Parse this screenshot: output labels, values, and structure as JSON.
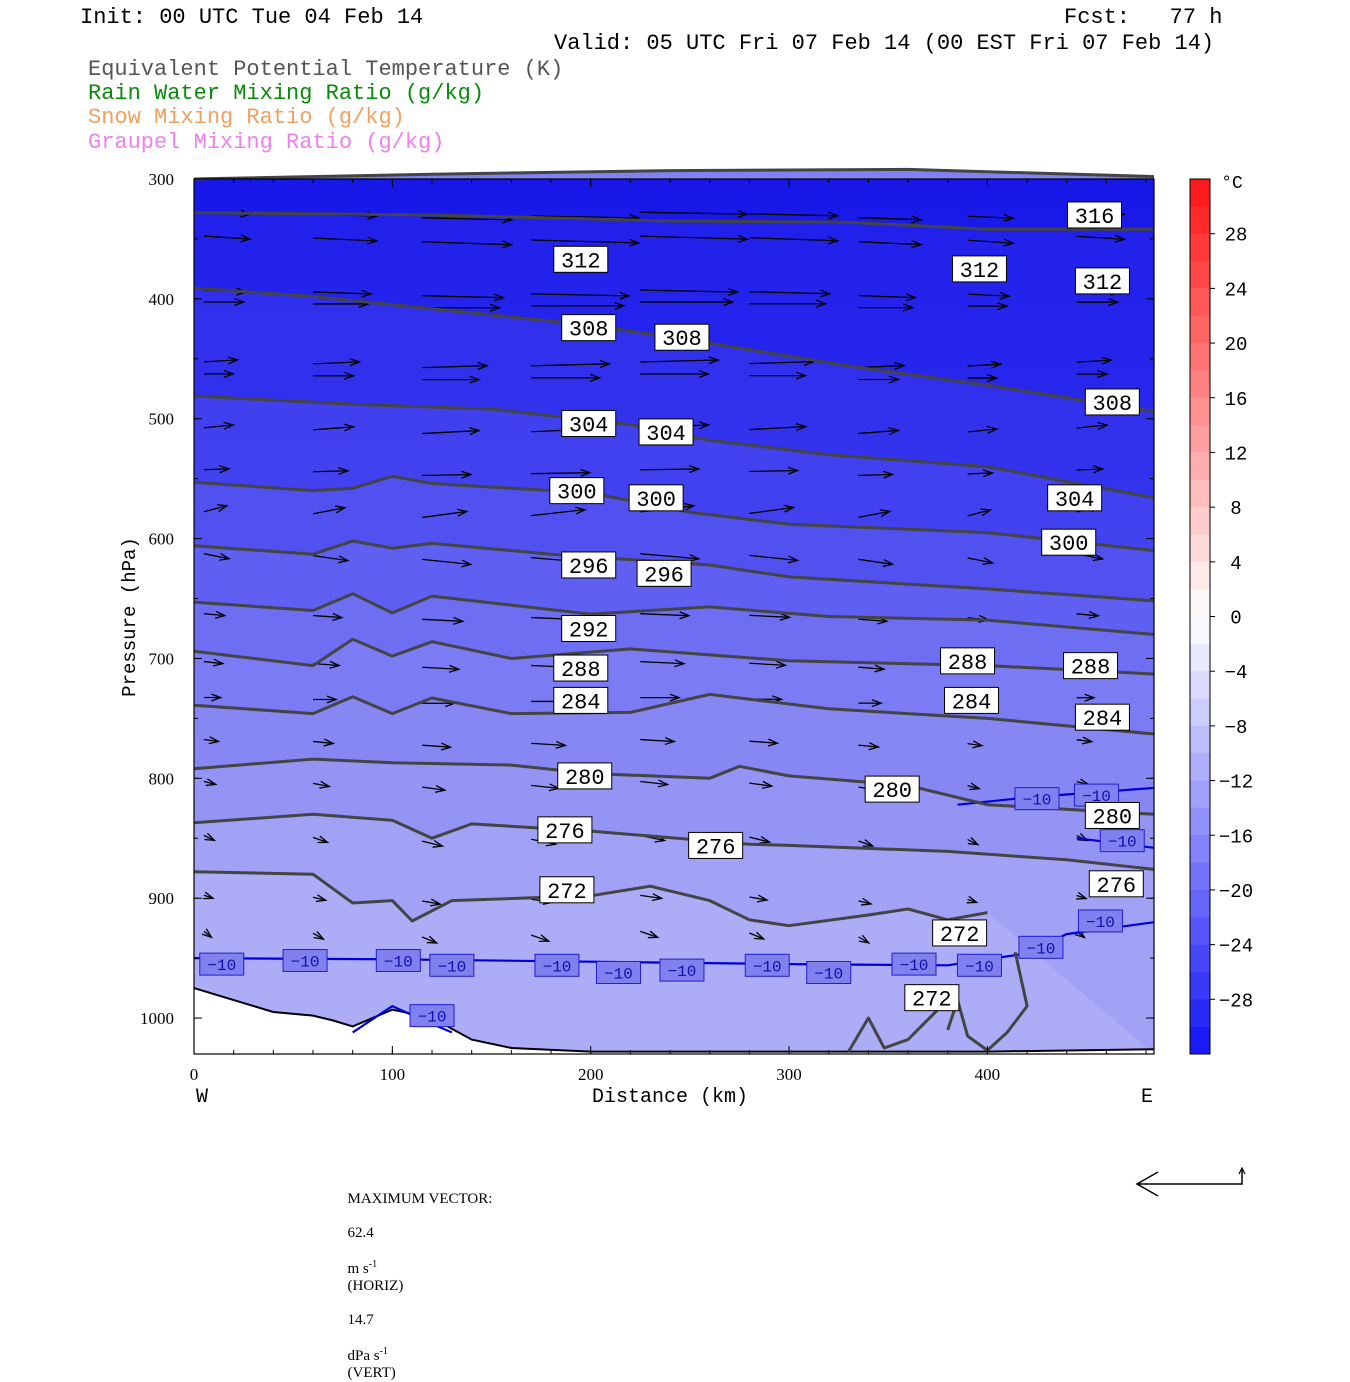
{
  "header": {
    "init": "Init: 00 UTC Tue 04 Feb 14",
    "fcst": "Fcst:   77 h",
    "valid": "Valid: 05 UTC Fri 07 Feb 14 (00 EST Fri 07 Feb 14)"
  },
  "legend": [
    {
      "label": "Equivalent Potential Temperature (K)",
      "color": "#555555"
    },
    {
      "label": "Rain Water Mixing Ratio (g/kg)",
      "color": "#0a8a0a"
    },
    {
      "label": "Snow Mixing Ratio (g/kg)",
      "color": "#f0a060"
    },
    {
      "label": "Graupel Mixing Ratio (g/kg)",
      "color": "#f080f0"
    }
  ],
  "chart_data": {
    "type": "contour",
    "ylabel": "Pressure (hPa)",
    "xlabel": "Distance (km)",
    "x_end_labels": {
      "left": "W",
      "right": "E"
    },
    "x_ticks": [
      0,
      100,
      200,
      300,
      400
    ],
    "y_ticks": [
      300,
      400,
      500,
      600,
      700,
      800,
      900,
      1000
    ],
    "xlim": [
      0,
      484
    ],
    "ylim": [
      300,
      1030
    ],
    "colorbar": {
      "unit": "°C",
      "ticks": [
        28,
        24,
        20,
        16,
        12,
        8,
        4,
        0,
        -4,
        -8,
        -12,
        -16,
        -20,
        -24,
        -28
      ],
      "range": [
        -32,
        32
      ]
    },
    "theta_e_contours": [
      {
        "value": 316,
        "points": [
          [
            0,
            300
          ],
          [
            120,
            296
          ],
          [
            240,
            293
          ],
          [
            360,
            292
          ],
          [
            484,
            298
          ]
        ],
        "labels": [
          [
            454,
            330
          ]
        ]
      },
      {
        "value": 312,
        "points": [
          [
            0,
            328
          ],
          [
            120,
            330
          ],
          [
            240,
            335
          ],
          [
            330,
            336
          ],
          [
            400,
            342
          ],
          [
            484,
            342
          ]
        ],
        "labels": [
          [
            195,
            367
          ],
          [
            396,
            375
          ],
          [
            458,
            385
          ]
        ]
      },
      {
        "value": 308,
        "points": [
          [
            0,
            391
          ],
          [
            60,
            398
          ],
          [
            130,
            410
          ],
          [
            200,
            422
          ],
          [
            260,
            437
          ],
          [
            330,
            456
          ],
          [
            400,
            472
          ],
          [
            484,
            494
          ]
        ],
        "labels": [
          [
            199,
            424
          ],
          [
            246,
            432
          ],
          [
            463,
            486
          ]
        ]
      },
      {
        "value": 304,
        "points": [
          [
            0,
            481
          ],
          [
            80,
            488
          ],
          [
            150,
            492
          ],
          [
            220,
            505
          ],
          [
            260,
            518
          ],
          [
            320,
            530
          ],
          [
            400,
            540
          ],
          [
            484,
            566
          ]
        ],
        "labels": [
          [
            199,
            504
          ],
          [
            238,
            511
          ],
          [
            444,
            566
          ]
        ]
      },
      {
        "value": 300,
        "points": [
          [
            0,
            553
          ],
          [
            60,
            560
          ],
          [
            80,
            558
          ],
          [
            100,
            548
          ],
          [
            120,
            554
          ],
          [
            200,
            562
          ],
          [
            250,
            578
          ],
          [
            300,
            588
          ],
          [
            400,
            595
          ],
          [
            484,
            610
          ]
        ],
        "labels": [
          [
            193,
            560
          ],
          [
            233,
            566
          ],
          [
            441,
            603
          ]
        ]
      },
      {
        "value": 296,
        "points": [
          [
            0,
            606
          ],
          [
            60,
            613
          ],
          [
            80,
            602
          ],
          [
            100,
            608
          ],
          [
            120,
            604
          ],
          [
            180,
            613
          ],
          [
            260,
            622
          ],
          [
            300,
            632
          ],
          [
            400,
            642
          ],
          [
            484,
            652
          ]
        ],
        "labels": [
          [
            199,
            622
          ],
          [
            237,
            629
          ]
        ]
      },
      {
        "value": 292,
        "points": [
          [
            0,
            653
          ],
          [
            60,
            660
          ],
          [
            80,
            646
          ],
          [
            100,
            662
          ],
          [
            120,
            648
          ],
          [
            200,
            663
          ],
          [
            260,
            657
          ],
          [
            320,
            665
          ],
          [
            400,
            668
          ],
          [
            484,
            680
          ]
        ],
        "labels": [
          [
            199,
            675
          ]
        ]
      },
      {
        "value": 288,
        "points": [
          [
            0,
            694
          ],
          [
            60,
            706
          ],
          [
            80,
            684
          ],
          [
            100,
            698
          ],
          [
            120,
            686
          ],
          [
            160,
            700
          ],
          [
            220,
            692
          ],
          [
            300,
            702
          ],
          [
            400,
            706
          ],
          [
            484,
            713
          ]
        ],
        "labels": [
          [
            195,
            708
          ],
          [
            390,
            702
          ],
          [
            452,
            706
          ]
        ]
      },
      {
        "value": 284,
        "points": [
          [
            0,
            739
          ],
          [
            60,
            746
          ],
          [
            80,
            732
          ],
          [
            100,
            746
          ],
          [
            120,
            733
          ],
          [
            160,
            746
          ],
          [
            220,
            745
          ],
          [
            260,
            730
          ],
          [
            320,
            742
          ],
          [
            400,
            750
          ],
          [
            484,
            763
          ]
        ],
        "labels": [
          [
            195,
            735
          ],
          [
            392,
            735
          ],
          [
            458,
            749
          ]
        ]
      },
      {
        "value": 280,
        "points": [
          [
            0,
            792
          ],
          [
            60,
            784
          ],
          [
            100,
            787
          ],
          [
            160,
            789
          ],
          [
            200,
            796
          ],
          [
            260,
            800
          ],
          [
            275,
            790
          ],
          [
            300,
            798
          ],
          [
            360,
            806
          ],
          [
            400,
            822
          ],
          [
            484,
            830
          ]
        ],
        "labels": [
          [
            197,
            798
          ],
          [
            352,
            809
          ],
          [
            463,
            831
          ]
        ]
      },
      {
        "value": 276,
        "points": [
          [
            0,
            837
          ],
          [
            60,
            830
          ],
          [
            100,
            835
          ],
          [
            120,
            850
          ],
          [
            140,
            838
          ],
          [
            200,
            844
          ],
          [
            280,
            855
          ],
          [
            300,
            856
          ],
          [
            380,
            861
          ],
          [
            440,
            868
          ],
          [
            484,
            876
          ]
        ],
        "labels": [
          [
            187,
            843
          ],
          [
            263,
            856
          ],
          [
            465,
            888
          ]
        ]
      },
      {
        "value": 272,
        "points": [
          [
            0,
            878
          ],
          [
            60,
            880
          ],
          [
            80,
            904
          ],
          [
            100,
            902
          ],
          [
            110,
            919
          ],
          [
            130,
            902
          ],
          [
            200,
            898
          ],
          [
            230,
            890
          ],
          [
            260,
            902
          ],
          [
            280,
            918
          ],
          [
            300,
            923
          ],
          [
            340,
            914
          ],
          [
            360,
            909
          ],
          [
            380,
            918
          ],
          [
            400,
            912
          ]
        ],
        "labels": [
          [
            188,
            893
          ],
          [
            386,
            929
          ]
        ]
      },
      {
        "value": 272,
        "points": [
          [
            380,
            1010
          ],
          [
            385,
            985
          ],
          [
            390,
            1015
          ],
          [
            400,
            1027
          ],
          [
            410,
            1012
          ],
          [
            420,
            990
          ],
          [
            414,
            945
          ]
        ],
        "labels": [
          [
            372,
            983
          ]
        ]
      },
      {
        "value": 272,
        "points": [
          [
            330,
            1028
          ],
          [
            340,
            1000
          ],
          [
            348,
            1025
          ],
          [
            360,
            1018
          ],
          [
            378,
            988
          ]
        ],
        "labels": []
      }
    ],
    "temperature_contours": [
      {
        "value": -10,
        "points": [
          [
            0,
            950
          ],
          [
            100,
            951
          ],
          [
            200,
            953
          ],
          [
            300,
            955
          ],
          [
            380,
            956
          ],
          [
            420,
            946
          ],
          [
            440,
            930
          ],
          [
            484,
            920
          ]
        ],
        "labels": [
          [
            14,
            955
          ],
          [
            56,
            952
          ],
          [
            103,
            952
          ],
          [
            130,
            956
          ],
          [
            183,
            956
          ],
          [
            214,
            962
          ],
          [
            246,
            960
          ],
          [
            289,
            956
          ],
          [
            320,
            962
          ],
          [
            363,
            955
          ],
          [
            396,
            956
          ],
          [
            427,
            941
          ],
          [
            457,
            919
          ]
        ]
      },
      {
        "value": -10,
        "points": [
          [
            385,
            822
          ],
          [
            420,
            816
          ],
          [
            484,
            808
          ]
        ],
        "labels": [
          [
            425,
            817
          ],
          [
            455,
            814
          ]
        ]
      },
      {
        "value": -10,
        "points": [
          [
            445,
            850
          ],
          [
            484,
            858
          ]
        ],
        "labels": [
          [
            468,
            852
          ]
        ]
      },
      {
        "value": -10,
        "points": [
          [
            80,
            1012
          ],
          [
            100,
            990
          ],
          [
            120,
            1005
          ],
          [
            130,
            1012
          ]
        ],
        "labels": [
          [
            120,
            998
          ]
        ]
      }
    ],
    "terrain_pressure": [
      [
        0,
        975
      ],
      [
        20,
        985
      ],
      [
        40,
        995
      ],
      [
        60,
        998
      ],
      [
        70,
        1002
      ],
      [
        80,
        1007
      ],
      [
        100,
        993
      ],
      [
        120,
        1000
      ],
      [
        140,
        1018
      ],
      [
        160,
        1025
      ],
      [
        200,
        1028
      ],
      [
        300,
        1028
      ],
      [
        400,
        1028
      ],
      [
        484,
        1026
      ]
    ],
    "vector_caption": {
      "label": "MAXIMUM VECTOR:",
      "horiz_value": "62.4",
      "horiz_unit": "m s",
      "horiz_note": "(HORIZ)",
      "vert_value": "14.7",
      "vert_unit": "dPa s",
      "vert_note": "(VERT)",
      "exponent": "-1"
    }
  }
}
